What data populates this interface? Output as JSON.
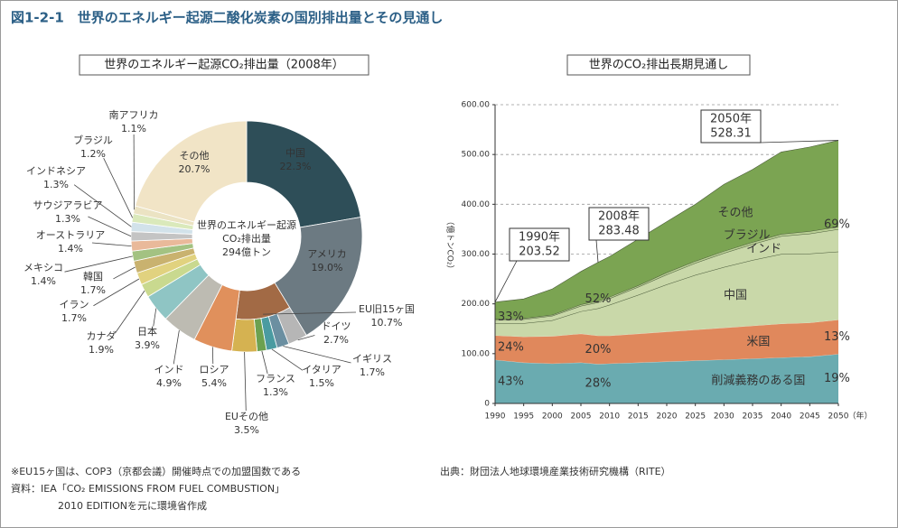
{
  "title": "図1-2-1　世界のエネルギー起源二酸化炭素の国別排出量とその見通し",
  "notes": [
    "※EU15ヶ国は、COP3（京都会議）開催時点での加盟国数である",
    "資料：IEA「CO₂ EMISSIONS FROM FUEL COMBUSTION」",
    "2010 EDITIONを元に環境省作成"
  ],
  "source": "出典：財団法人地球環境産業技術研究機構（RITE）",
  "chart_data": [
    {
      "type": "donut",
      "title": "世界のエネルギー起源CO₂排出量（2008年）",
      "center_label": [
        "世界のエネルギー起源",
        "CO₂排出量",
        "294億トン"
      ],
      "categories": [
        "中国",
        "アメリカ",
        "EU旧15ヶ国",
        "ロシア",
        "インド",
        "日本",
        "カナダ",
        "イラン",
        "韓国",
        "メキシコ",
        "オーストラリア",
        "サウジアラビア",
        "インドネシア",
        "ブラジル",
        "南アフリカ",
        "その他"
      ],
      "values": [
        22.3,
        19.0,
        10.7,
        5.4,
        4.9,
        3.9,
        1.9,
        1.7,
        1.7,
        1.4,
        1.4,
        1.3,
        1.3,
        1.2,
        1.1,
        20.7
      ],
      "value_labels": [
        "22.3%",
        "19.0%",
        "10.7%",
        "5.4%",
        "4.9%",
        "3.9%",
        "1.9%",
        "1.7%",
        "1.7%",
        "1.4%",
        "1.4%",
        "1.3%",
        "1.3%",
        "1.2%",
        "1.1%",
        "20.7%"
      ],
      "colors": [
        "#2e4e58",
        "#6c7a82",
        "#a26a45",
        "#e0905c",
        "#bdbbb2",
        "#8fc5c4",
        "#c9d98f",
        "#e1d27f",
        "#c9b26f",
        "#a3c282",
        "#e9b99a",
        "#c4c4c4",
        "#d2e2ea",
        "#dae9bb",
        "#ebe3c3",
        "#f1e4c6"
      ],
      "breakdown": {
        "EU旧15ヶ国": {
          "categories": [
            "ドイツ",
            "イギリス",
            "イタリア",
            "フランス",
            "EUその他"
          ],
          "values": [
            2.7,
            1.7,
            1.5,
            1.3,
            3.5
          ],
          "value_labels": [
            "2.7%",
            "1.7%",
            "1.5%",
            "1.3%",
            "3.5%"
          ],
          "colors": [
            "#b6b6b6",
            "#6b8fa1",
            "#4a9ba1",
            "#6ca150",
            "#d5b251"
          ]
        }
      }
    },
    {
      "type": "stacked_area",
      "title": "世界のCO₂排出長期見通し",
      "y_label": "（億トンCO₂）",
      "x_unit": "（年）",
      "x": [
        1990,
        1995,
        2000,
        2005,
        2008,
        2010,
        2015,
        2020,
        2025,
        2030,
        2035,
        2040,
        2045,
        2050
      ],
      "series": [
        {
          "name": "削減義務のある国",
          "color": "#6aabb0",
          "values": [
            87.5,
            82,
            80,
            82,
            79,
            80,
            82,
            84,
            86,
            88,
            90,
            92,
            94,
            99
          ]
        },
        {
          "name": "米国",
          "color": "#e0885c",
          "values": [
            49,
            52,
            55,
            58,
            57,
            56,
            58,
            60,
            62,
            64,
            66,
            68,
            68,
            69
          ]
        },
        {
          "name": "中国",
          "color": "#c9d8a9",
          "values": [
            24,
            27,
            32,
            45,
            55,
            62,
            78,
            95,
            110,
            122,
            132,
            140,
            139,
            137
          ]
        },
        {
          "name": "インド",
          "color": "#c9d8a9",
          "values": [
            7,
            8,
            9,
            11,
            12,
            13,
            16,
            20,
            24,
            28,
            32,
            36,
            40,
            45
          ]
        },
        {
          "name": "ブラジル",
          "color": "#b9cf94",
          "values": [
            2,
            2,
            2,
            3,
            3,
            3,
            3,
            4,
            4,
            4,
            4,
            4,
            5,
            5
          ]
        },
        {
          "name": "その他",
          "color": "#7ba452",
          "values": [
            34.02,
            39,
            52,
            66,
            77.48,
            81,
            93,
            102,
            114,
            134,
            146,
            165,
            169,
            173.31
          ]
        }
      ],
      "xlim": [
        1990,
        2050
      ],
      "xticks": [
        1990,
        1995,
        2000,
        2005,
        2010,
        2015,
        2020,
        2025,
        2030,
        2035,
        2040,
        2045,
        2050
      ],
      "ylim": [
        0,
        600
      ],
      "yticks": [
        0,
        {
          "value": 100,
          "label": "100.00"
        },
        {
          "value": 200,
          "label": "200.00"
        },
        {
          "value": 300,
          "label": "300.00"
        },
        {
          "value": 400,
          "label": "400.00"
        },
        {
          "value": 500,
          "label": "500.00"
        },
        {
          "value": 600,
          "label": "600.00"
        }
      ],
      "grid": true,
      "callouts": [
        {
          "label": "1990年",
          "x": 1990,
          "value": 203.52
        },
        {
          "label": "2008年",
          "x": 2008,
          "value": 283.48
        },
        {
          "label": "2050年",
          "x": 2050,
          "value": 528.31
        }
      ],
      "shares": [
        {
          "x": 1990,
          "values": [
            43,
            24,
            33
          ],
          "value_labels": [
            "43%",
            "24%",
            "33%"
          ]
        },
        {
          "x": 2008,
          "values": [
            28,
            20,
            52
          ],
          "value_labels": [
            "28%",
            "20%",
            "52%"
          ]
        },
        {
          "x": 2050,
          "values": [
            19,
            13,
            69
          ],
          "value_labels": [
            "19%",
            "13%",
            "69%"
          ]
        }
      ]
    }
  ]
}
